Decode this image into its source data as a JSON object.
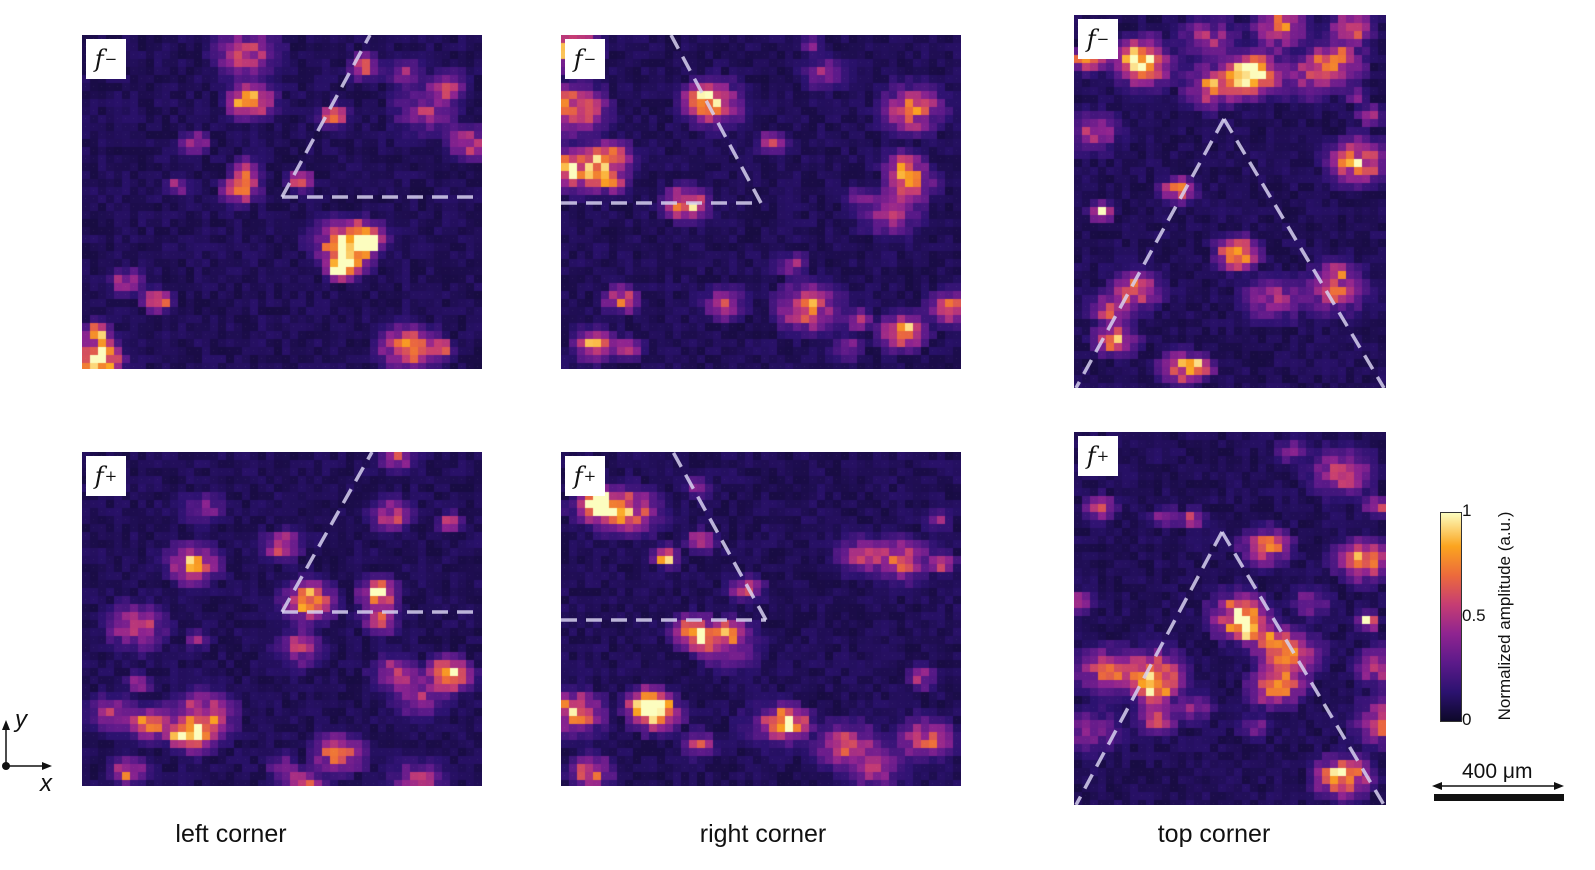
{
  "panels": [
    {
      "id": "left-corner-fminus",
      "label": "f",
      "sub": "−"
    },
    {
      "id": "right-corner-fminus",
      "label": "f",
      "sub": "−"
    },
    {
      "id": "top-corner-fminus",
      "label": "f",
      "sub": "−"
    },
    {
      "id": "left-corner-fplus",
      "label": "f",
      "sub": "+"
    },
    {
      "id": "right-corner-fplus",
      "label": "f",
      "sub": "+"
    },
    {
      "id": "top-corner-fplus",
      "label": "f",
      "sub": "+"
    }
  ],
  "captions": {
    "left": "left corner",
    "right": "right corner",
    "top": "top corner"
  },
  "axes": {
    "x": "x",
    "y": "y"
  },
  "colorbar": {
    "title": "Normalized amplitude (a.u.)",
    "ticks": [
      "1",
      "0.5",
      "0"
    ],
    "range": [
      0,
      1
    ]
  },
  "scalebar": {
    "label": "400 μm"
  },
  "colors": {
    "background": "#1c1052",
    "guide": "#d8d2f0"
  }
}
